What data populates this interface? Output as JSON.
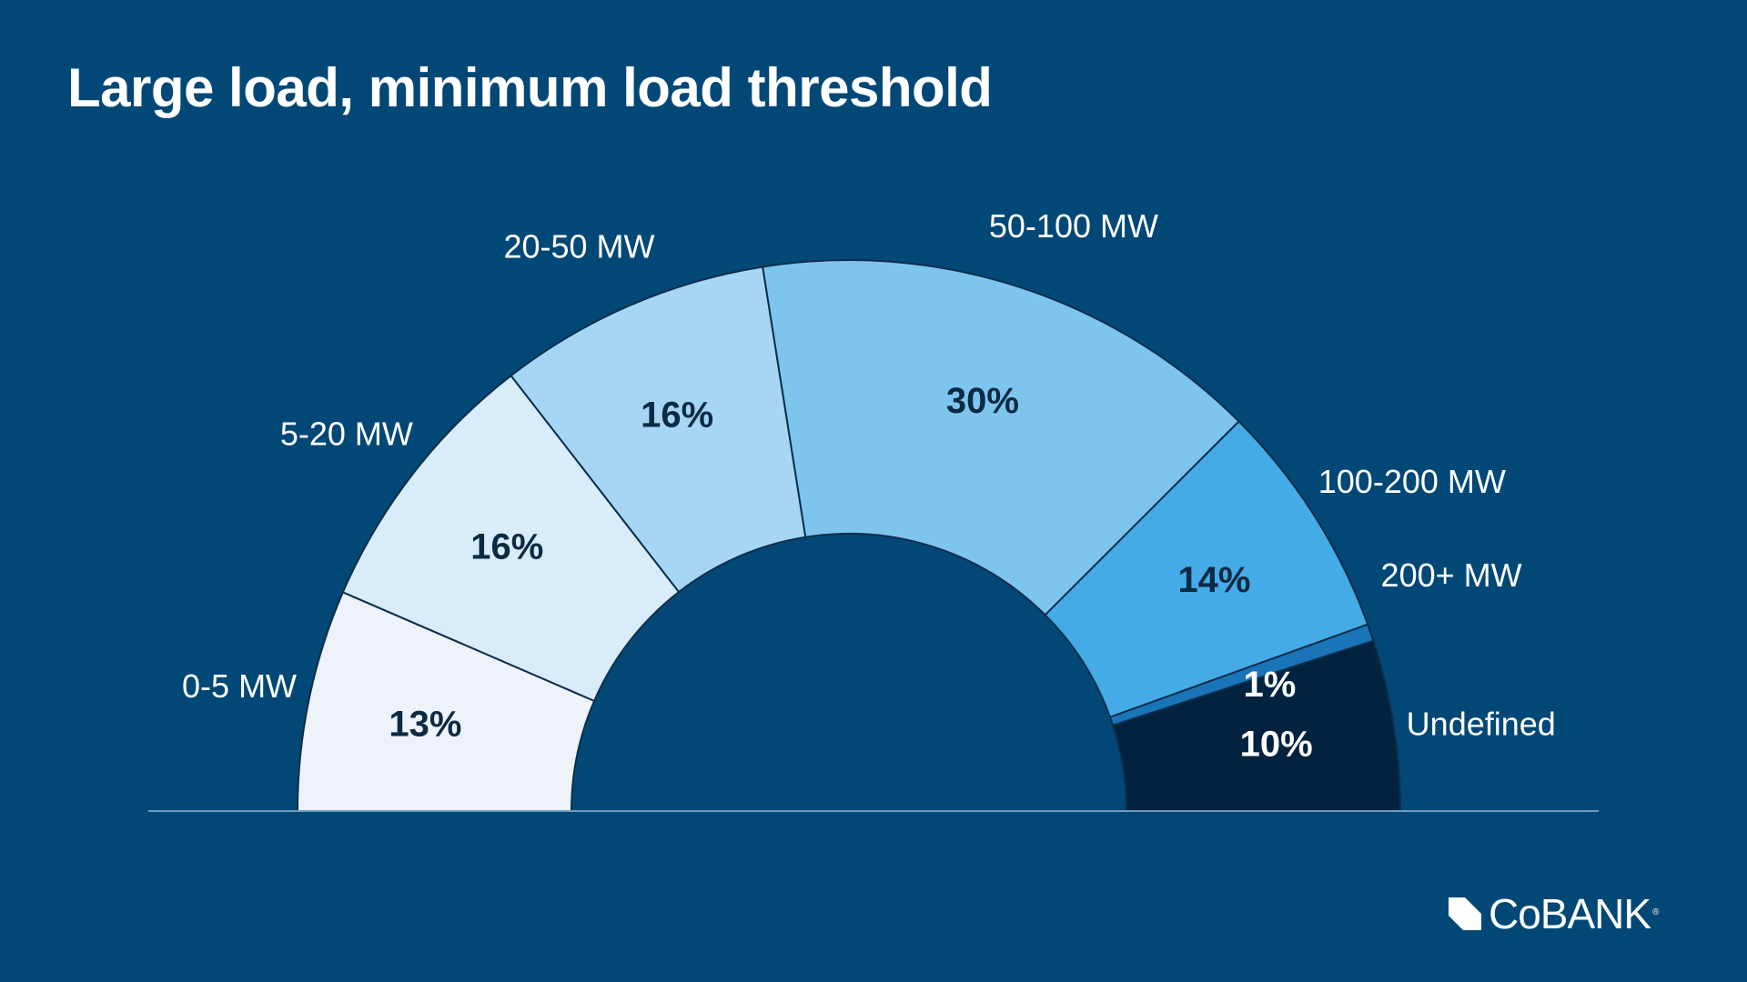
{
  "chart_data": {
    "type": "pie",
    "subtype": "semi-donut",
    "title": "Large load, minimum load threshold",
    "categories": [
      "0-5 MW",
      "5-20 MW",
      "20-50 MW",
      "50-100 MW",
      "100-200 MW",
      "200+ MW",
      "Undefined"
    ],
    "values": [
      13,
      16,
      16,
      30,
      14,
      1,
      10
    ],
    "value_labels": [
      "13%",
      "16%",
      "16%",
      "30%",
      "14%",
      "1%",
      "10%"
    ],
    "colors": [
      "#eef3f9",
      "#d8ecfa",
      "#a6d6f3",
      "#7ec5ee",
      "#45abe6",
      "#1a75b8",
      "#01233f"
    ],
    "label_colors": [
      "#0b2a44",
      "#0b2a44",
      "#0b2a44",
      "#0b2a44",
      "#0b2a44",
      "#ffffff",
      "#ffffff"
    ],
    "legend": "category labels placed outside each segment"
  },
  "branding": {
    "logo_text": "CoBANK",
    "registered_mark": "®"
  }
}
